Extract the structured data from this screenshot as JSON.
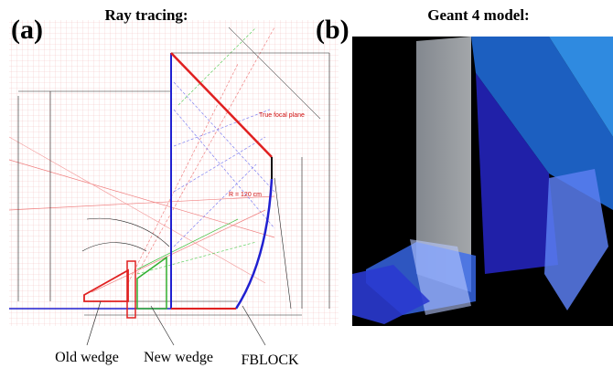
{
  "panel_a": {
    "letter": "(a)",
    "title": "Ray tracing:",
    "annotations": [
      "True focal plane",
      "R = 120 cm"
    ],
    "labels": [
      "Old wedge",
      "New wedge",
      "FBLOCK"
    ]
  },
  "panel_b": {
    "letter": "(b)",
    "title": "Geant 4 model:"
  }
}
